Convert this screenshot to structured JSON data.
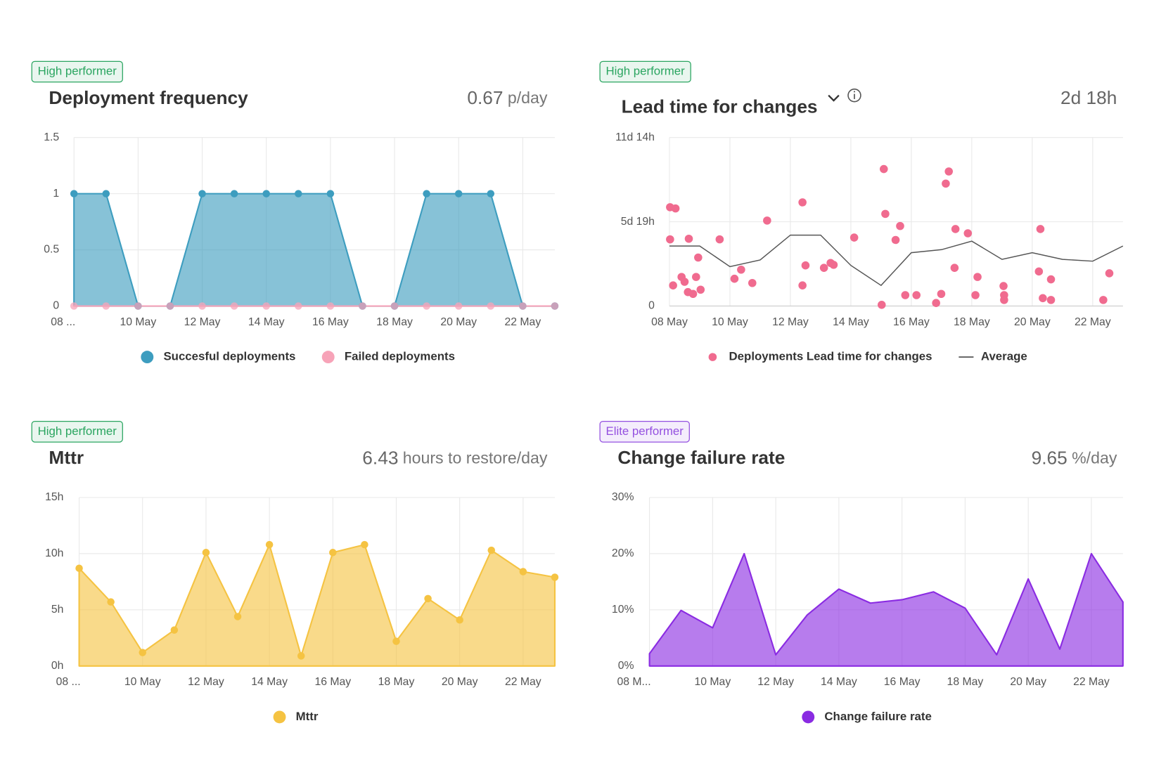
{
  "chart_data": [
    {
      "type": "area",
      "badge": "High performer",
      "badge_color": "#2aa560",
      "title": "Deployment frequency",
      "summary_value": 0.67,
      "summary_unit": "p/day",
      "categories": [
        "08 ...",
        null,
        "10 May",
        null,
        "12 May",
        null,
        "14 May",
        null,
        "16 May",
        null,
        "18 May",
        null,
        "20 May",
        null,
        "22 May",
        null
      ],
      "series": [
        {
          "name": "Succesful deployments",
          "color": "#3d9dbf",
          "values": [
            1,
            1,
            0,
            0,
            1,
            1,
            1,
            1,
            1,
            0,
            0,
            1,
            1,
            1,
            0,
            0
          ]
        },
        {
          "name": "Failed deployments",
          "color": "#f7a3b8",
          "values": [
            0,
            0,
            0,
            0,
            0,
            0,
            0,
            0,
            0,
            0,
            0,
            0,
            0,
            0,
            0,
            0
          ]
        }
      ],
      "ylim": [
        0,
        1.5
      ],
      "yticks": [
        0,
        0.5,
        1,
        1.5
      ],
      "grid": true,
      "markers": true
    },
    {
      "type": "scatter",
      "badge": "High performer",
      "badge_color": "#2aa560",
      "title": "Lead time for changes",
      "summary_value": "2d 18h",
      "xlim": [
        8,
        23
      ],
      "xticks": [
        {
          "value": 8,
          "label": "08 May"
        },
        {
          "value": 10,
          "label": "10 May"
        },
        {
          "value": 12,
          "label": "12 May"
        },
        {
          "value": 14,
          "label": "14 May"
        },
        {
          "value": 16,
          "label": "16 May"
        },
        {
          "value": 18,
          "label": "18 May"
        },
        {
          "value": 20,
          "label": "20 May"
        },
        {
          "value": 22,
          "label": "22 May"
        }
      ],
      "ylim": [
        0,
        278
      ],
      "yticks": [
        0,
        {
          "value": 139,
          "label": "5d 19h"
        },
        {
          "value": 278,
          "label": "11d 14h"
        }
      ],
      "series": [
        {
          "name": "Deployments Lead time for changes",
          "type": "scatter",
          "color": "#f06b8f",
          "x": [
            8.02,
            8.2,
            8.02,
            8.64,
            8.95,
            8.12,
            8.4,
            8.5,
            8.88,
            8.61,
            8.78,
            9.03,
            9.66,
            10.15,
            10.37,
            10.74,
            11.23,
            12.4,
            12.5,
            12.4,
            13.11,
            13.33,
            13.43,
            14.11,
            15.09,
            15.14,
            15.63,
            15.48,
            15.02,
            15.8,
            16.17,
            17.24,
            17.14,
            17.46,
            17.87,
            17.43,
            16.99,
            16.82,
            18.19,
            18.12,
            19.05,
            19.07,
            19.07,
            20.27,
            20.22,
            20.62,
            20.35,
            20.62,
            22.55,
            22.35
          ],
          "values": [
            163,
            161,
            110,
            111,
            80,
            34,
            48,
            40,
            48,
            23,
            20,
            27,
            110,
            45,
            60,
            38,
            141,
            171,
            67,
            34,
            63,
            71,
            68,
            113,
            226,
            152,
            132,
            109,
            2,
            18,
            18,
            222,
            202,
            127,
            120,
            63,
            20,
            5,
            48,
            18,
            33,
            18,
            10,
            127,
            57,
            44,
            13,
            10,
            54,
            10
          ]
        },
        {
          "name": "Average",
          "type": "line",
          "color": "#555555",
          "x": [
            8,
            9,
            10,
            11,
            12,
            13,
            14,
            15,
            16,
            17,
            18,
            19,
            20,
            21,
            22,
            23
          ],
          "values": [
            99,
            99,
            65,
            76,
            117,
            117,
            67,
            34,
            88,
            93,
            107,
            77,
            88,
            77,
            74,
            99
          ]
        }
      ],
      "grid": true
    },
    {
      "type": "area",
      "badge": "High performer",
      "badge_color": "#2aa560",
      "title": "Mttr",
      "summary_value": 6.43,
      "summary_unit": "hours to restore/day",
      "categories": [
        "08 ...",
        null,
        "10 May",
        null,
        "12 May",
        null,
        "14 May",
        null,
        "16 May",
        null,
        "18 May",
        null,
        "20 May",
        null,
        "22 May",
        null
      ],
      "series": [
        {
          "name": "Mttr",
          "color": "#f5c342",
          "values": [
            8.7,
            5.7,
            1.2,
            3.2,
            10.1,
            4.4,
            10.8,
            0.9,
            10.1,
            10.8,
            2.2,
            6.0,
            4.1,
            10.3,
            8.4,
            7.9
          ]
        }
      ],
      "ylim": [
        0,
        15
      ],
      "yticks": [
        {
          "value": 0,
          "label": "0h"
        },
        {
          "value": 5,
          "label": "5h"
        },
        {
          "value": 10,
          "label": "10h"
        },
        {
          "value": 15,
          "label": "15h"
        }
      ],
      "grid": true,
      "markers": true
    },
    {
      "type": "area",
      "badge": "Elite performer",
      "badge_color": "#9450e0",
      "title": "Change failure rate",
      "summary_value": 9.65,
      "summary_unit": "%/day",
      "categories": [
        "08 M...",
        null,
        "10 May",
        null,
        "12 May",
        null,
        "14 May",
        null,
        "16 May",
        null,
        "18 May",
        null,
        "20 May",
        null,
        "22 May",
        null
      ],
      "series": [
        {
          "name": "Change failure rate",
          "color": "#8a2be2",
          "values": [
            2.2,
            9.9,
            6.8,
            20.0,
            2.0,
            9.1,
            13.7,
            11.2,
            11.8,
            13.2,
            10.3,
            2.0,
            15.5,
            3.0,
            20.0,
            11.4
          ]
        }
      ],
      "ylim": [
        0,
        30
      ],
      "yticks": [
        {
          "value": 0,
          "label": "0%"
        },
        {
          "value": 10,
          "label": "10%"
        },
        {
          "value": 20,
          "label": "20%"
        },
        {
          "value": 30,
          "label": "30%"
        }
      ],
      "grid": true,
      "markers": false
    }
  ]
}
